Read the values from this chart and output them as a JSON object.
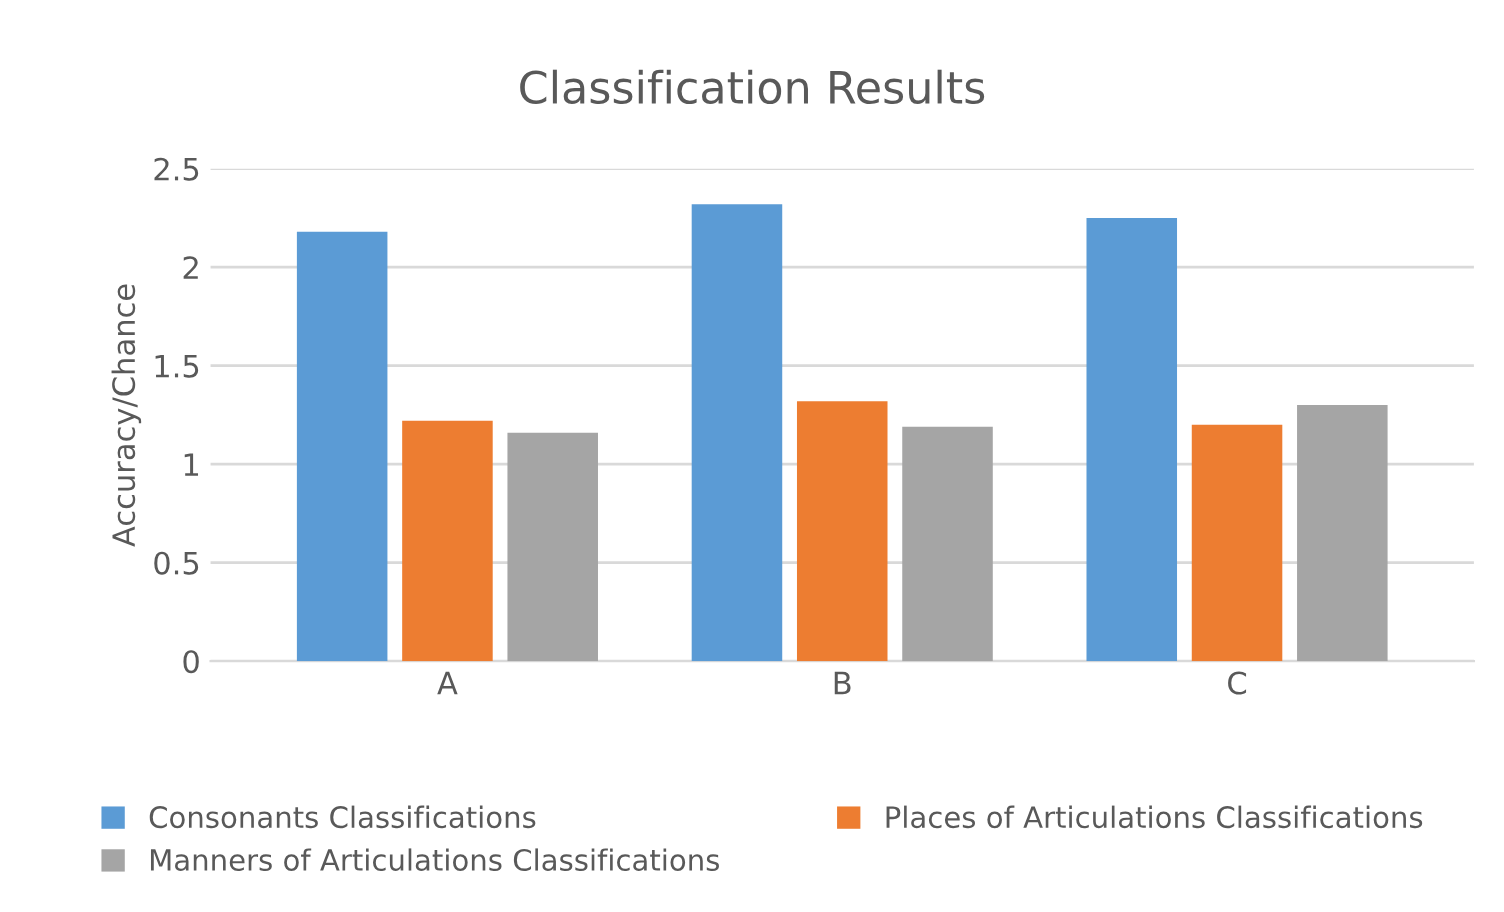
{
  "chart_data": {
    "type": "bar",
    "title": "Classification Results",
    "ylabel": "Accuracy/Chance",
    "categories": [
      "A",
      "B",
      "C"
    ],
    "series": [
      {
        "name": "Consonants Classifications",
        "color": "#5b9bd5",
        "values": [
          2.18,
          2.32,
          2.25
        ]
      },
      {
        "name": "Places of Articulations Classifications",
        "color": "#ed7d31",
        "values": [
          1.22,
          1.32,
          1.2
        ]
      },
      {
        "name": "Manners of Articulations Classifications",
        "color": "#a5a5a5",
        "values": [
          1.16,
          1.19,
          1.3
        ]
      }
    ],
    "ylim": [
      0,
      2.5
    ],
    "yticks": [
      0,
      0.5,
      1,
      1.5,
      2,
      2.5
    ],
    "grid": "y",
    "legend": "bottom"
  }
}
